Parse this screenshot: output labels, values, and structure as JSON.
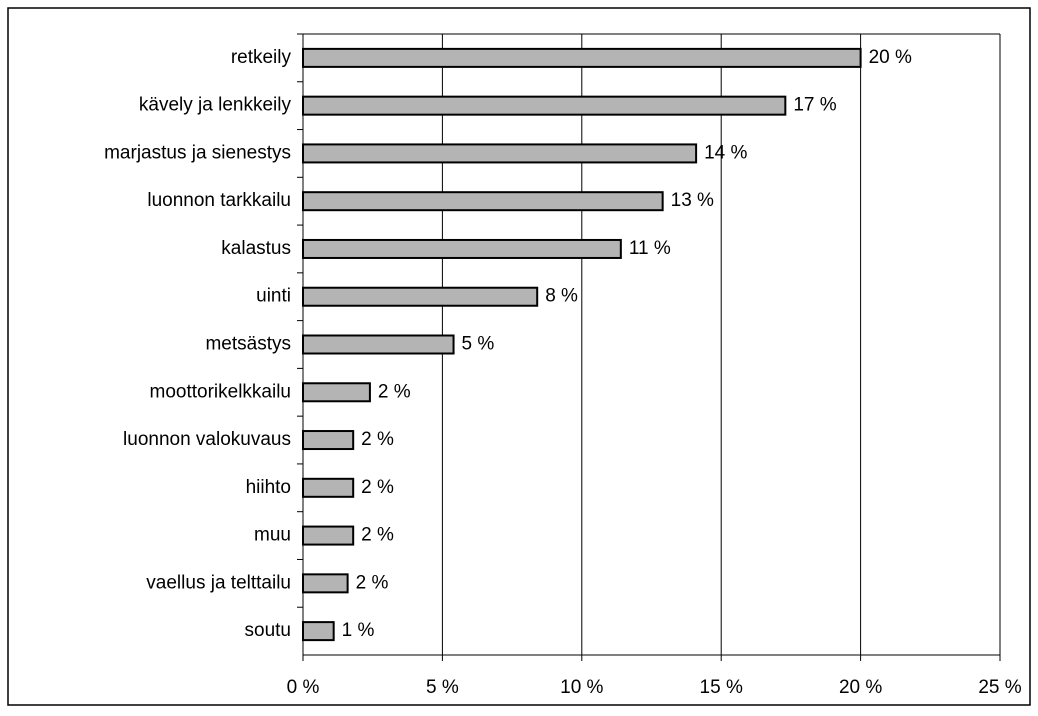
{
  "chart_data": {
    "type": "bar",
    "orientation": "horizontal",
    "categories": [
      "retkeily",
      "kävely ja lenkkeily",
      "marjastus ja sienestys",
      "luonnon tarkkailu",
      "kalastus",
      "uinti",
      "metsästys",
      "moottorikelkkailu",
      "luonnon valokuvaus",
      "hiihto",
      "muu",
      "vaellus ja telttailu",
      "soutu"
    ],
    "values": [
      20,
      17.3,
      14.1,
      12.9,
      11.4,
      8.4,
      5.4,
      2.4,
      1.8,
      1.8,
      1.8,
      1.6,
      1.1
    ],
    "value_labels": [
      "20 %",
      "17 %",
      "14 %",
      "13 %",
      "11 %",
      "8 %",
      "5 %",
      "2 %",
      "2 %",
      "2 %",
      "2 %",
      "2 %",
      "1 %"
    ],
    "color": "#b4b4b4",
    "xlim": [
      0,
      25
    ],
    "xticks": [
      {
        "value": 0,
        "label": "0 %"
      },
      {
        "value": 5,
        "label": "5 %"
      },
      {
        "value": 10,
        "label": "10 %"
      },
      {
        "value": 15,
        "label": "15 %"
      },
      {
        "value": 20,
        "label": "20 %"
      },
      {
        "value": 25,
        "label": "25 %"
      }
    ],
    "grid": true
  }
}
